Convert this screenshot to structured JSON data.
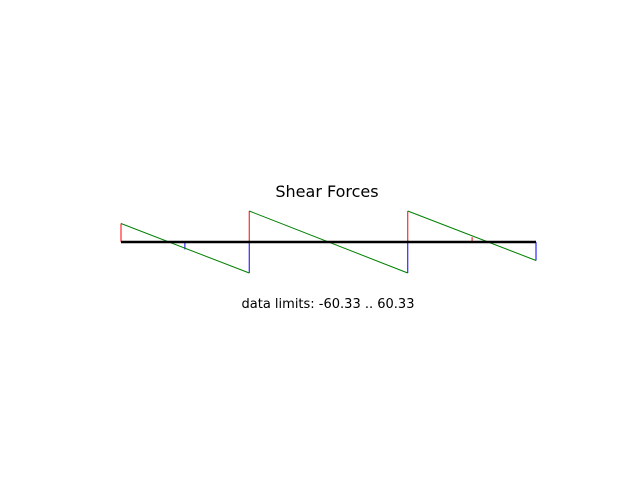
{
  "chart_data": {
    "type": "line",
    "title": "Shear Forces",
    "footer": "data limits:  -60.33 .. 60.33",
    "colors": {
      "axis": "#000000",
      "shear": "#008000",
      "positive": "#ff0000",
      "negative": "#0000ff"
    },
    "x_range": [
      0,
      1
    ],
    "y_range": [
      -60.33,
      60.33
    ],
    "shear_segments": [
      {
        "x_start": 0.0,
        "x_end": 0.309,
        "v_start": 36.0,
        "v_end": -60.33
      },
      {
        "x_start": 0.309,
        "x_end": 0.691,
        "v_start": 60.33,
        "v_end": -60.33
      },
      {
        "x_start": 0.691,
        "x_end": 1.0,
        "v_start": 60.33,
        "v_end": -36.0
      }
    ],
    "jumps": [
      {
        "x": 0.0,
        "from": 0.0,
        "to": 36.0
      },
      {
        "x": 0.154,
        "from": 0.0,
        "to": -14.5
      },
      {
        "x": 0.309,
        "from": -60.33,
        "to": 60.33
      },
      {
        "x": 0.691,
        "from": -60.33,
        "to": 60.33
      },
      {
        "x": 0.846,
        "from": 0.0,
        "to": 9.5
      },
      {
        "x": 1.0,
        "from": -36.0,
        "to": 0.0
      }
    ]
  }
}
